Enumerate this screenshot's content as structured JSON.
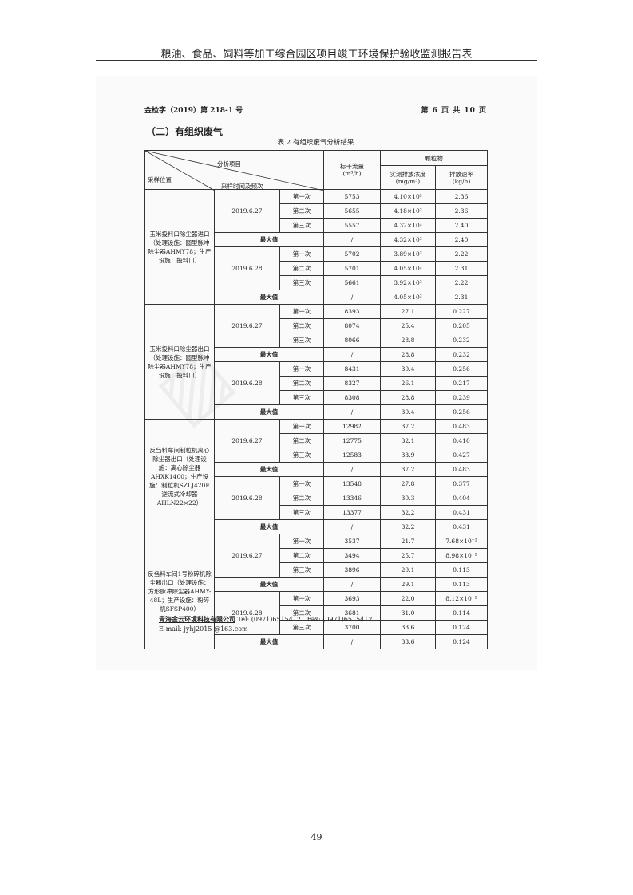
{
  "report_title": "粮油、食品、饲料等加工综合园区项目竣工环境保护验收监测报告表",
  "doc_no": "金检字（2019）第 218-1 号",
  "page_info": "第 6 页 共 10 页",
  "section_heading": "（二）有组织废气",
  "table_caption": "表 2 有组织废气分析结果",
  "table_header": {
    "analysis_item": "分析项目",
    "sampling_location": "采样位置",
    "sampling_time": "采样时间及频次",
    "flow": "标干流量",
    "flow_unit": "(m³/h)",
    "pollutant": "颗粒物",
    "conc": "实测排放浓度",
    "conc_unit": "(mg/m³)",
    "rate": "排放速率",
    "rate_unit": "(kg/h)"
  },
  "max_label": "最大值",
  "groups": [
    {
      "location": "玉米投料口除尘器进口（处理设施：圆型脉冲除尘器AHMY78；生产设施：投料口）",
      "dates": [
        {
          "date": "2019.6.27",
          "rows": [
            [
              "第一次",
              "5753",
              "4.10×10²",
              "2.36"
            ],
            [
              "第二次",
              "5655",
              "4.18×10²",
              "2.36"
            ],
            [
              "第三次",
              "5557",
              "4.32×10²",
              "2.40"
            ]
          ],
          "max": [
            "/",
            "4.32×10²",
            "2.40"
          ]
        },
        {
          "date": "2019.6.28",
          "rows": [
            [
              "第一次",
              "5702",
              "3.89×10²",
              "2.22"
            ],
            [
              "第二次",
              "5701",
              "4.05×10²",
              "2.31"
            ],
            [
              "第三次",
              "5661",
              "3.92×10²",
              "2.22"
            ]
          ],
          "max": [
            "/",
            "4.05×10²",
            "2.31"
          ]
        }
      ]
    },
    {
      "location": "玉米投料口除尘器出口（处理设施：圆型脉冲除尘器AHMY78；生产设施：投料口）",
      "dates": [
        {
          "date": "2019.6.27",
          "rows": [
            [
              "第一次",
              "8393",
              "27.1",
              "0.227"
            ],
            [
              "第二次",
              "8074",
              "25.4",
              "0.205"
            ],
            [
              "第三次",
              "8066",
              "28.8",
              "0.232"
            ]
          ],
          "max": [
            "/",
            "28.8",
            "0.232"
          ]
        },
        {
          "date": "2019.6.28",
          "rows": [
            [
              "第一次",
              "8431",
              "30.4",
              "0.256"
            ],
            [
              "第二次",
              "8327",
              "26.1",
              "0.217"
            ],
            [
              "第三次",
              "8308",
              "28.8",
              "0.239"
            ]
          ],
          "max": [
            "/",
            "30.4",
            "0.256"
          ]
        }
      ]
    },
    {
      "location": "反刍料车间制粒机离心除尘器出口（处理设施：离心除尘器AHXK1400；生产设施：制粒机SZLJ420E逆流式冷却器AHLN22×22）",
      "dates": [
        {
          "date": "2019.6.27",
          "rows": [
            [
              "第一次",
              "12982",
              "37.2",
              "0.483"
            ],
            [
              "第二次",
              "12775",
              "32.1",
              "0.410"
            ],
            [
              "第三次",
              "12583",
              "33.9",
              "0.427"
            ]
          ],
          "max": [
            "/",
            "37.2",
            "0.483"
          ]
        },
        {
          "date": "2019.6.28",
          "rows": [
            [
              "第一次",
              "13548",
              "27.8",
              "0.377"
            ],
            [
              "第二次",
              "13346",
              "30.3",
              "0.404"
            ],
            [
              "第三次",
              "13377",
              "32.2",
              "0.431"
            ]
          ],
          "max": [
            "/",
            "32.2",
            "0.431"
          ]
        }
      ]
    },
    {
      "location": "反刍料车间1号粉碎机除尘器出口（处理设施：方形脉冲除尘器AHMY-48L；生产设施：粉碎机SFSP400）",
      "dates": [
        {
          "date": "2019.6.27",
          "rows": [
            [
              "第一次",
              "3537",
              "21.7",
              "7.68×10⁻²"
            ],
            [
              "第二次",
              "3494",
              "25.7",
              "8.98×10⁻²"
            ],
            [
              "第三次",
              "3896",
              "29.1",
              "0.113"
            ]
          ],
          "max": [
            "/",
            "29.1",
            "0.113"
          ]
        },
        {
          "date": "2019.6.28",
          "rows": [
            [
              "第一次",
              "3693",
              "22.0",
              "8.12×10⁻²"
            ],
            [
              "第二次",
              "3681",
              "31.0",
              "0.114"
            ],
            [
              "第三次",
              "3700",
              "33.6",
              "0.124"
            ]
          ],
          "max": [
            "/",
            "33.6",
            "0.124"
          ]
        }
      ]
    }
  ],
  "footer": {
    "company": "青海金云环境科技有限公司",
    "tel": "Tel:  (0971)6515412",
    "fax": "Fax:  (0971)6515412",
    "email": "E-mail:  jyhj2015 @163.com"
  },
  "page_number": "49"
}
